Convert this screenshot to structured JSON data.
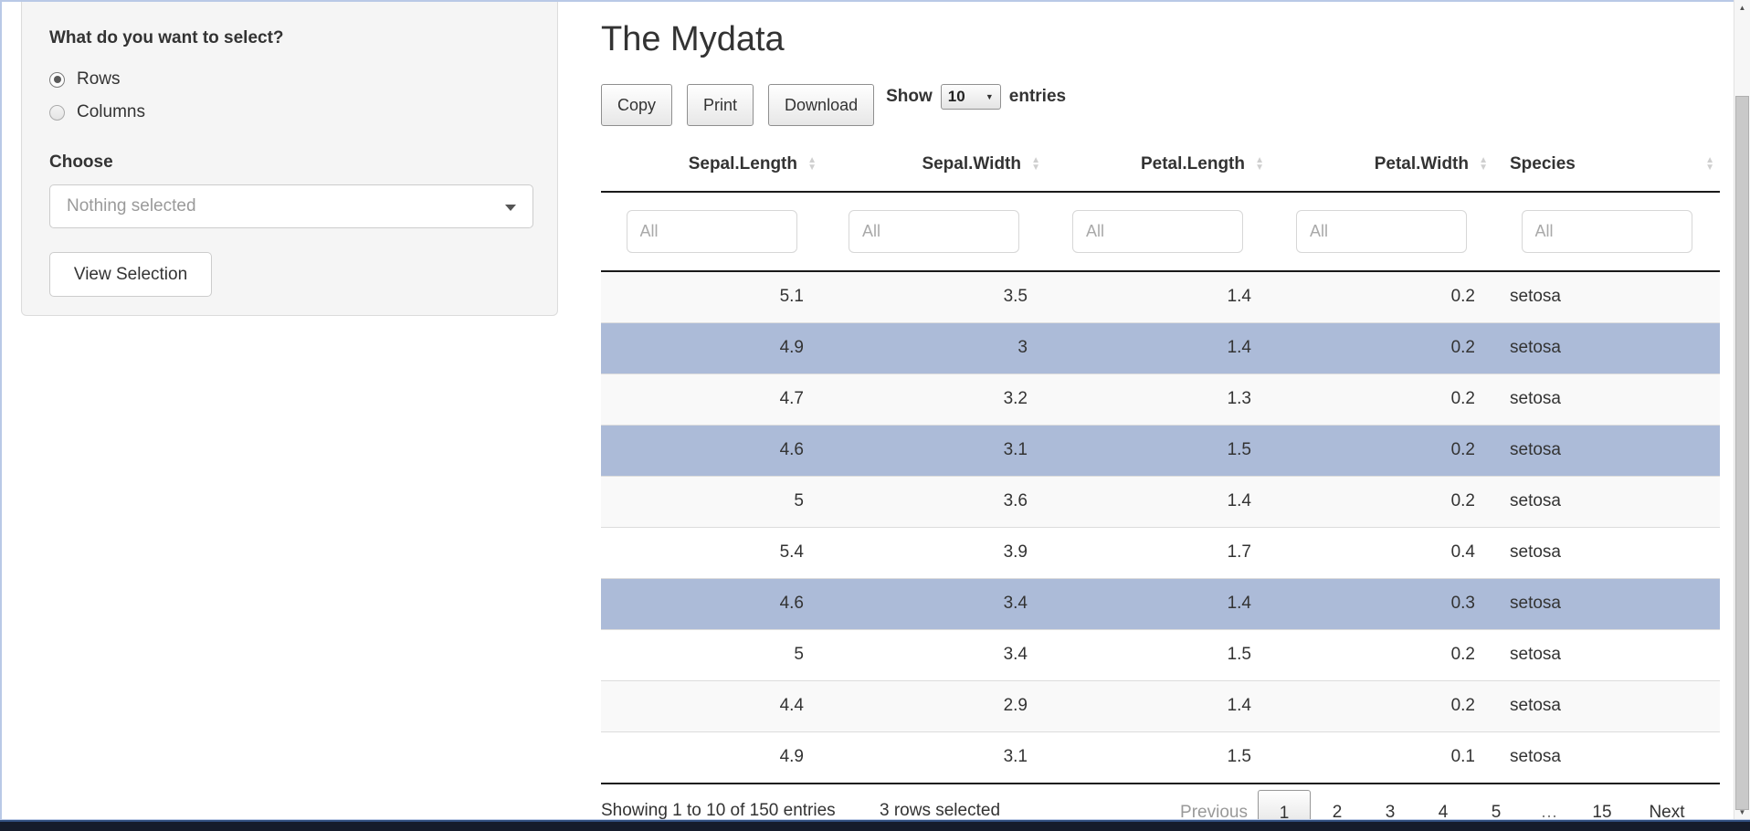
{
  "sidebar": {
    "question_label": "What do you want to select?",
    "options": [
      {
        "label": "Rows",
        "selected": true
      },
      {
        "label": "Columns",
        "selected": false
      }
    ],
    "choose_label": "Choose",
    "select_placeholder": "Nothing selected",
    "view_button_label": "View Selection"
  },
  "main": {
    "title": "The Mydata",
    "buttons": [
      "Copy",
      "Print",
      "Download"
    ],
    "show": {
      "prefix": "Show",
      "value": "10",
      "suffix": "entries"
    }
  },
  "table": {
    "columns": [
      {
        "label": "Sepal.Length",
        "align": "num"
      },
      {
        "label": "Sepal.Width",
        "align": "num"
      },
      {
        "label": "Petal.Length",
        "align": "num"
      },
      {
        "label": "Petal.Width",
        "align": "num"
      },
      {
        "label": "Species",
        "align": "txt"
      }
    ],
    "filter_placeholder": "All",
    "rows": [
      [
        "5.1",
        "3.5",
        "1.4",
        "0.2",
        "setosa"
      ],
      [
        "4.9",
        "3",
        "1.4",
        "0.2",
        "setosa"
      ],
      [
        "4.7",
        "3.2",
        "1.3",
        "0.2",
        "setosa"
      ],
      [
        "4.6",
        "3.1",
        "1.5",
        "0.2",
        "setosa"
      ],
      [
        "5",
        "3.6",
        "1.4",
        "0.2",
        "setosa"
      ],
      [
        "5.4",
        "3.9",
        "1.7",
        "0.4",
        "setosa"
      ],
      [
        "4.6",
        "3.4",
        "1.4",
        "0.3",
        "setosa"
      ],
      [
        "5",
        "3.4",
        "1.5",
        "0.2",
        "setosa"
      ],
      [
        "4.4",
        "2.9",
        "1.4",
        "0.2",
        "setosa"
      ],
      [
        "4.9",
        "3.1",
        "1.5",
        "0.1",
        "setosa"
      ]
    ],
    "selected_row_indices": [
      1,
      3,
      6
    ]
  },
  "footer": {
    "info": "Showing 1 to 10 of 150 entries",
    "selection_info": "3 rows selected",
    "pagination": [
      {
        "label": "Previous",
        "state": "prev"
      },
      {
        "label": "1",
        "state": "current"
      },
      {
        "label": "2",
        "state": ""
      },
      {
        "label": "3",
        "state": ""
      },
      {
        "label": "4",
        "state": ""
      },
      {
        "label": "5",
        "state": ""
      },
      {
        "label": "…",
        "state": "gap"
      },
      {
        "label": "15",
        "state": ""
      },
      {
        "label": "Next",
        "state": "next"
      }
    ]
  },
  "icons": {
    "sort_asc": "▲",
    "sort_desc": "▼",
    "caret_down": "▼",
    "scroll_up": "▲",
    "scroll_down": "▼"
  },
  "colors": {
    "selected_row": "#acbbd8",
    "row_stripe": "#f9f9f9",
    "header_border": "#1a1a1a",
    "window_edge_blue": "#b9c9e6",
    "bottom_bar": "#151c2b"
  }
}
